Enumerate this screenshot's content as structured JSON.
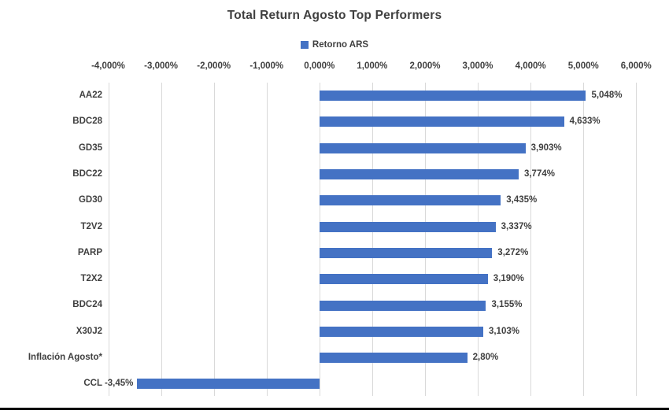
{
  "chart_data": {
    "type": "bar",
    "orientation": "horizontal",
    "title": "Total Return Agosto Top Performers",
    "legend_label": "Retorno ARS",
    "legend_position": "top",
    "grid": true,
    "xlabel": "",
    "ylabel": "",
    "xlim": [
      -4,
      6
    ],
    "x_ticks": [
      -4,
      -3,
      -2,
      -1,
      0,
      1,
      2,
      3,
      4,
      5,
      6
    ],
    "x_tick_labels": [
      "-4,000%",
      "-3,000%",
      "-2,000%",
      "-1,000%",
      "0,000%",
      "1,000%",
      "2,000%",
      "3,000%",
      "4,000%",
      "5,000%",
      "6,000%"
    ],
    "categories": [
      "AA22",
      "BDC28",
      "GD35",
      "BDC22",
      "GD30",
      "T2V2",
      "PARP",
      "T2X2",
      "BDC24",
      "X30J2",
      "Inflación Agosto*",
      "CCL"
    ],
    "series": [
      {
        "name": "Retorno ARS",
        "values": [
          5.048,
          4.633,
          3.903,
          3.774,
          3.435,
          3.337,
          3.272,
          3.19,
          3.155,
          3.103,
          2.8,
          -3.45
        ],
        "value_labels": [
          "5,048%",
          "4,633%",
          "3,903%",
          "3,774%",
          "3,435%",
          "3,337%",
          "3,272%",
          "3,190%",
          "3,155%",
          "3,103%",
          "2,80%",
          "-3,45%"
        ]
      }
    ]
  },
  "style": {
    "bar_color": "#4472C4",
    "gridline_color": "#D9D9D9",
    "text_color": "#404040",
    "bottom_line_color": "#000000",
    "background": "#FFFFFF"
  }
}
